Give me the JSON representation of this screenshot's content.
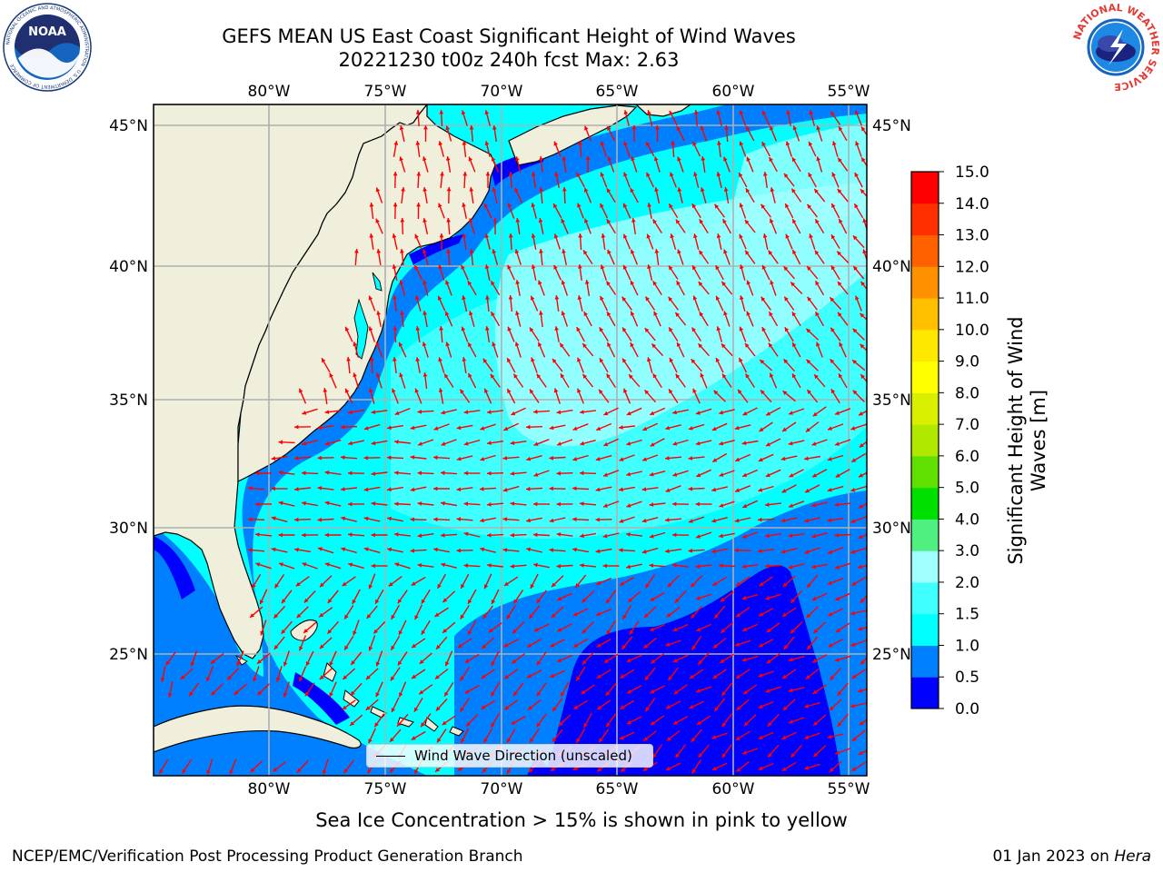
{
  "title": {
    "line1": "GEFS MEAN US East Coast Significant Height of Wind Waves",
    "line2": "20221230 t00z 240h fcst   Max: 2.63"
  },
  "logos": {
    "left": {
      "name": "noaa-logo",
      "text": "NOAA",
      "ring_text": "NATIONAL OCEANIC AND ATMOSPHERIC ADMINISTRATION · U.S. DEPARTMENT OF COMMERCE"
    },
    "right": {
      "name": "nws-logo",
      "ring_text": "NATIONAL WEATHER SERVICE"
    }
  },
  "map": {
    "lon_min": -85,
    "lon_max": -54,
    "lat_min": 20.5,
    "lat_max": 46,
    "lon_ticks": [
      "80°W",
      "75°W",
      "70°W",
      "65°W",
      "60°W",
      "55°W"
    ],
    "lat_ticks": [
      "45°N",
      "40°N",
      "35°N",
      "30°N",
      "25°N"
    ],
    "lon_values": [
      -80,
      -75,
      -70,
      -65,
      -60,
      -55
    ],
    "lat_values": [
      45,
      40,
      35,
      30,
      25
    ],
    "land_color": "#efefdc",
    "grid_color": "#b0b0b0",
    "arrow_color": "#ff0000"
  },
  "legend": {
    "label": "Wind Wave Direction (unscaled)"
  },
  "colorbar": {
    "label": "Significant Height of Wind Waves [m]",
    "ticks": [
      "0.0",
      "0.5",
      "1.0",
      "1.5",
      "2.0",
      "3.0",
      "4.0",
      "5.0",
      "6.0",
      "7.0",
      "8.0",
      "9.0",
      "10.0",
      "11.0",
      "12.0",
      "13.0",
      "14.0",
      "15.0"
    ],
    "colors": [
      "#0000ff",
      "#0080ff",
      "#00ffff",
      "#40ffff",
      "#a0ffff",
      "#50f080",
      "#00e000",
      "#60e000",
      "#b0e800",
      "#d8f000",
      "#ffff00",
      "#ffe800",
      "#ffc000",
      "#ff9000",
      "#ff6000",
      "#ff3000",
      "#ff0000"
    ]
  },
  "note": "Sea Ice Concentration > 15% is shown in pink to yellow",
  "footer": {
    "credit": "NCEP/EMC/Verification Post Processing Product Generation Branch",
    "date": "01 Jan 2023 on",
    "host": "Hera"
  }
}
